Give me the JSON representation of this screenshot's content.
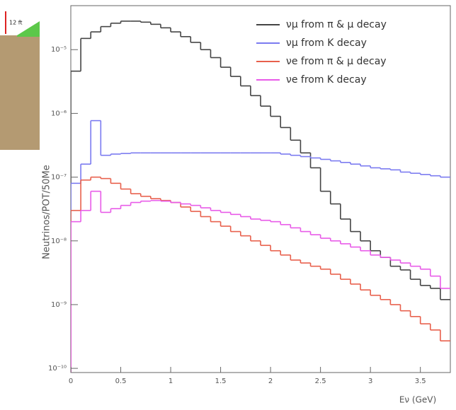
{
  "chart_data": {
    "type": "histogram",
    "xlabel": "Eν (GeV)",
    "ylabel": "Neutrinos/POT/50Me",
    "log_y": true,
    "legend": "top-right",
    "xlim": [
      0,
      3.8
    ],
    "xticks": [
      0,
      0.5,
      1,
      1.5,
      2,
      2.5,
      3,
      3.5
    ],
    "ylim": [
      8.6e-11,
      4.9e-05
    ],
    "yticks": [
      {
        "value": 1e-10,
        "label": "10⁻¹⁰"
      },
      {
        "value": 1e-09,
        "label": "10⁻⁹"
      },
      {
        "value": 1e-08,
        "label": "10⁻⁸"
      },
      {
        "value": 1e-07,
        "label": "10⁻⁷"
      },
      {
        "value": 1e-06,
        "label": "10⁻⁶"
      },
      {
        "value": 1e-05,
        "label": "10⁻⁵"
      }
    ],
    "bins": [
      0,
      0.1,
      0.2,
      0.3,
      0.4,
      0.5,
      0.6,
      0.7,
      0.8,
      0.9,
      1.0,
      1.1,
      1.2,
      1.3,
      1.4,
      1.5,
      1.6,
      1.7,
      1.8,
      1.9,
      2.0,
      2.1,
      2.2,
      2.3,
      2.4,
      2.5,
      2.6,
      2.7,
      2.8,
      2.9,
      3.0,
      3.1,
      3.2,
      3.3,
      3.4,
      3.5,
      3.6,
      3.7,
      3.8
    ],
    "series": [
      {
        "name": "νμ from π & μ decay",
        "color": "#444444",
        "values": [
          4.6e-06,
          1.5e-05,
          1.9e-05,
          2.3e-05,
          2.6e-05,
          2.8e-05,
          2.8e-05,
          2.7e-05,
          2.5e-05,
          2.2e-05,
          1.9e-05,
          1.6e-05,
          1.3e-05,
          1e-05,
          7.5e-06,
          5.3e-06,
          3.8e-06,
          2.7e-06,
          1.9e-06,
          1.3e-06,
          9e-07,
          6e-07,
          3.8e-07,
          2.4e-07,
          1.4e-07,
          6e-08,
          3.8e-08,
          2.2e-08,
          1.4e-08,
          1e-08,
          7e-09,
          5.5e-09,
          4e-09,
          3.5e-09,
          2.5e-09,
          2e-09,
          1.8e-09,
          1.2e-09
        ]
      },
      {
        "name": "νμ from K decay",
        "color": "#7b7bf0",
        "values": [
          8e-08,
          1.6e-07,
          7.7e-07,
          2.2e-07,
          2.3e-07,
          2.35e-07,
          2.4e-07,
          2.4e-07,
          2.4e-07,
          2.4e-07,
          2.4e-07,
          2.4e-07,
          2.4e-07,
          2.4e-07,
          2.4e-07,
          2.4e-07,
          2.4e-07,
          2.4e-07,
          2.4e-07,
          2.4e-07,
          2.4e-07,
          2.3e-07,
          2.2e-07,
          2.1e-07,
          2e-07,
          1.9e-07,
          1.8e-07,
          1.7e-07,
          1.6e-07,
          1.5e-07,
          1.4e-07,
          1.35e-07,
          1.3e-07,
          1.2e-07,
          1.15e-07,
          1.1e-07,
          1.05e-07,
          1e-07
        ]
      },
      {
        "name": "νe from π & μ decay",
        "color": "#e8604c",
        "values": [
          3e-08,
          9e-08,
          1e-07,
          9.5e-08,
          8e-08,
          6.5e-08,
          5.5e-08,
          5e-08,
          4.6e-08,
          4.3e-08,
          4e-08,
          3.4e-08,
          2.9e-08,
          2.4e-08,
          2e-08,
          1.7e-08,
          1.4e-08,
          1.2e-08,
          1e-08,
          8.5e-09,
          7e-09,
          6e-09,
          5e-09,
          4.5e-09,
          4e-09,
          3.6e-09,
          3e-09,
          2.5e-09,
          2.1e-09,
          1.7e-09,
          1.4e-09,
          1.2e-09,
          1e-09,
          8e-10,
          6.5e-10,
          5e-10,
          4e-10,
          2.7e-10
        ]
      },
      {
        "name": "νe from K decay",
        "color": "#e85ae8",
        "values": [
          2e-08,
          3e-08,
          6e-08,
          2.8e-08,
          3.2e-08,
          3.6e-08,
          4e-08,
          4.2e-08,
          4.3e-08,
          4.2e-08,
          4e-08,
          3.8e-08,
          3.6e-08,
          3.3e-08,
          3e-08,
          2.8e-08,
          2.6e-08,
          2.4e-08,
          2.2e-08,
          2.1e-08,
          2e-08,
          1.8e-08,
          1.6e-08,
          1.4e-08,
          1.25e-08,
          1.1e-08,
          1e-08,
          9e-09,
          8e-09,
          7e-09,
          6e-09,
          5.5e-09,
          5e-09,
          4.5e-09,
          4e-09,
          3.6e-09,
          2.8e-09,
          1.8e-09
        ]
      }
    ]
  },
  "inset": {
    "label": "12 ft"
  }
}
